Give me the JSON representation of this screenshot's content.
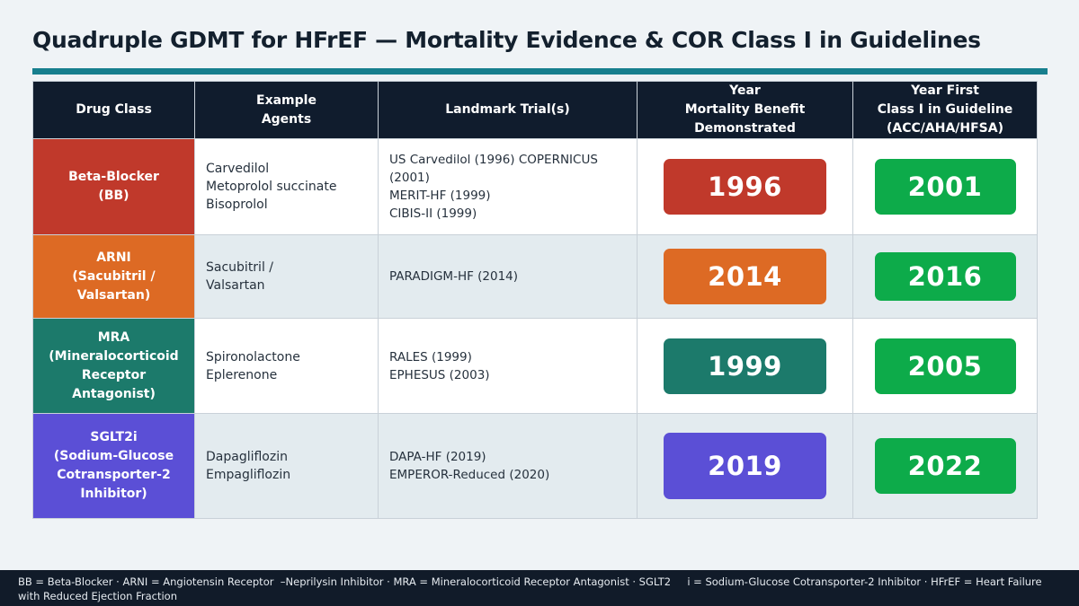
{
  "title": "Quadruple GDMT for HFrEF — Mortality Evidence & COR Class I in Guidelines",
  "headers": {
    "drug_class": [
      "Drug Class"
    ],
    "agents": [
      "Example",
      "Agents"
    ],
    "trials": [
      "Landmark Trial(s)"
    ],
    "mortality_year": [
      "Year",
      "Mortality Benefit",
      "Demonstrated"
    ],
    "guideline_year": [
      "Year First",
      "Class I in Guideline",
      "(ACC/AHA/HFSA)"
    ]
  },
  "colors": {
    "header_bg": "#101c2d",
    "accent_rule": "#177f8e",
    "guideline_green": "#0dab4a",
    "beta_blocker": "#c0392b",
    "arni": "#dd6a24",
    "mra": "#1c7a6b",
    "sglt2i": "#5b4fd6"
  },
  "rows": [
    {
      "class_lines": [
        "Beta-Blocker",
        "(BB)"
      ],
      "agents": [
        "Carvedilol",
        "Metoprolol succinate",
        "Bisoprolol"
      ],
      "trials": [
        "US Carvedilol (1996) COPERNICUS (2001)",
        "MERIT-HF (1999)",
        "CIBIS-II (1999)"
      ],
      "mortality_year": "1996",
      "guideline_year": "2001",
      "color": "#c0392b"
    },
    {
      "class_lines": [
        "ARNI",
        "(Sacubitril /",
        "Valsartan)"
      ],
      "agents": [
        "Sacubitril /",
        "Valsartan"
      ],
      "trials": [
        "PARADIGM-HF (2014)"
      ],
      "mortality_year": "2014",
      "guideline_year": "2016",
      "color": "#dd6a24"
    },
    {
      "class_lines": [
        "MRA",
        "(Mineralocorticoid",
        "Receptor",
        "Antagonist)"
      ],
      "agents": [
        "Spironolactone",
        "Eplerenone"
      ],
      "trials": [
        "RALES (1999)",
        "EPHESUS (2003)"
      ],
      "mortality_year": "1999",
      "guideline_year": "2005",
      "color": "#1c7a6b"
    },
    {
      "class_lines": [
        "SGLT2i",
        "(Sodium-Glucose",
        "Cotransporter-2",
        "Inhibitor)"
      ],
      "agents": [
        "Dapagliflozin",
        "Empagliflozin"
      ],
      "trials": [
        "DAPA-HF (2019)",
        "EMPEROR-Reduced (2020)"
      ],
      "mortality_year": "2019",
      "guideline_year": "2022",
      "color": "#5b4fd6"
    }
  ],
  "footer": "BB = Beta-Blocker · ARNI = Angiotensin Receptor  –Neprilysin Inhibitor · MRA = Mineralocorticoid Receptor Antagonist · SGLT2     i = Sodium-Glucose Cotransporter-2 Inhibitor · HFrEF = Heart Failure with Reduced Ejection Fraction"
}
